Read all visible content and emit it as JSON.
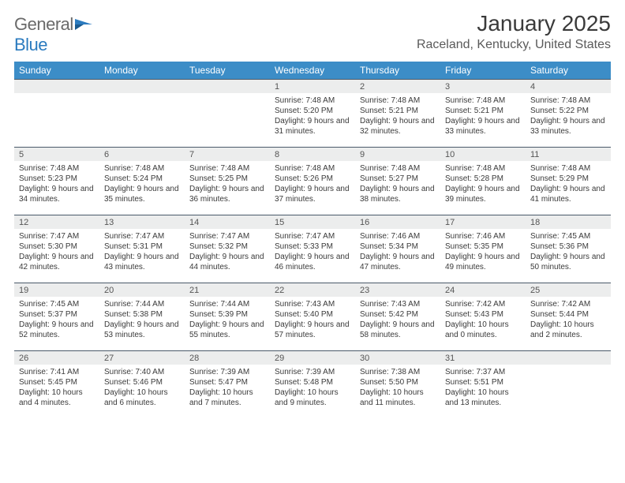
{
  "logo": {
    "general": "General",
    "blue": "Blue"
  },
  "title": "January 2025",
  "subtitle": "Raceland, Kentucky, United States",
  "colors": {
    "header_bg": "#3c8dc7",
    "header_text": "#ffffff",
    "strip_bg": "#eceded",
    "strip_border": "#4a5a6a",
    "body_text": "#3a3a3a",
    "logo_blue": "#2b7bbf"
  },
  "weekdays": [
    "Sunday",
    "Monday",
    "Tuesday",
    "Wednesday",
    "Thursday",
    "Friday",
    "Saturday"
  ],
  "weeks": [
    [
      null,
      null,
      null,
      {
        "n": "1",
        "sunrise": "7:48 AM",
        "sunset": "5:20 PM",
        "dl": "9 hours and 31 minutes."
      },
      {
        "n": "2",
        "sunrise": "7:48 AM",
        "sunset": "5:21 PM",
        "dl": "9 hours and 32 minutes."
      },
      {
        "n": "3",
        "sunrise": "7:48 AM",
        "sunset": "5:21 PM",
        "dl": "9 hours and 33 minutes."
      },
      {
        "n": "4",
        "sunrise": "7:48 AM",
        "sunset": "5:22 PM",
        "dl": "9 hours and 33 minutes."
      }
    ],
    [
      {
        "n": "5",
        "sunrise": "7:48 AM",
        "sunset": "5:23 PM",
        "dl": "9 hours and 34 minutes."
      },
      {
        "n": "6",
        "sunrise": "7:48 AM",
        "sunset": "5:24 PM",
        "dl": "9 hours and 35 minutes."
      },
      {
        "n": "7",
        "sunrise": "7:48 AM",
        "sunset": "5:25 PM",
        "dl": "9 hours and 36 minutes."
      },
      {
        "n": "8",
        "sunrise": "7:48 AM",
        "sunset": "5:26 PM",
        "dl": "9 hours and 37 minutes."
      },
      {
        "n": "9",
        "sunrise": "7:48 AM",
        "sunset": "5:27 PM",
        "dl": "9 hours and 38 minutes."
      },
      {
        "n": "10",
        "sunrise": "7:48 AM",
        "sunset": "5:28 PM",
        "dl": "9 hours and 39 minutes."
      },
      {
        "n": "11",
        "sunrise": "7:48 AM",
        "sunset": "5:29 PM",
        "dl": "9 hours and 41 minutes."
      }
    ],
    [
      {
        "n": "12",
        "sunrise": "7:47 AM",
        "sunset": "5:30 PM",
        "dl": "9 hours and 42 minutes."
      },
      {
        "n": "13",
        "sunrise": "7:47 AM",
        "sunset": "5:31 PM",
        "dl": "9 hours and 43 minutes."
      },
      {
        "n": "14",
        "sunrise": "7:47 AM",
        "sunset": "5:32 PM",
        "dl": "9 hours and 44 minutes."
      },
      {
        "n": "15",
        "sunrise": "7:47 AM",
        "sunset": "5:33 PM",
        "dl": "9 hours and 46 minutes."
      },
      {
        "n": "16",
        "sunrise": "7:46 AM",
        "sunset": "5:34 PM",
        "dl": "9 hours and 47 minutes."
      },
      {
        "n": "17",
        "sunrise": "7:46 AM",
        "sunset": "5:35 PM",
        "dl": "9 hours and 49 minutes."
      },
      {
        "n": "18",
        "sunrise": "7:45 AM",
        "sunset": "5:36 PM",
        "dl": "9 hours and 50 minutes."
      }
    ],
    [
      {
        "n": "19",
        "sunrise": "7:45 AM",
        "sunset": "5:37 PM",
        "dl": "9 hours and 52 minutes."
      },
      {
        "n": "20",
        "sunrise": "7:44 AM",
        "sunset": "5:38 PM",
        "dl": "9 hours and 53 minutes."
      },
      {
        "n": "21",
        "sunrise": "7:44 AM",
        "sunset": "5:39 PM",
        "dl": "9 hours and 55 minutes."
      },
      {
        "n": "22",
        "sunrise": "7:43 AM",
        "sunset": "5:40 PM",
        "dl": "9 hours and 57 minutes."
      },
      {
        "n": "23",
        "sunrise": "7:43 AM",
        "sunset": "5:42 PM",
        "dl": "9 hours and 58 minutes."
      },
      {
        "n": "24",
        "sunrise": "7:42 AM",
        "sunset": "5:43 PM",
        "dl": "10 hours and 0 minutes."
      },
      {
        "n": "25",
        "sunrise": "7:42 AM",
        "sunset": "5:44 PM",
        "dl": "10 hours and 2 minutes."
      }
    ],
    [
      {
        "n": "26",
        "sunrise": "7:41 AM",
        "sunset": "5:45 PM",
        "dl": "10 hours and 4 minutes."
      },
      {
        "n": "27",
        "sunrise": "7:40 AM",
        "sunset": "5:46 PM",
        "dl": "10 hours and 6 minutes."
      },
      {
        "n": "28",
        "sunrise": "7:39 AM",
        "sunset": "5:47 PM",
        "dl": "10 hours and 7 minutes."
      },
      {
        "n": "29",
        "sunrise": "7:39 AM",
        "sunset": "5:48 PM",
        "dl": "10 hours and 9 minutes."
      },
      {
        "n": "30",
        "sunrise": "7:38 AM",
        "sunset": "5:50 PM",
        "dl": "10 hours and 11 minutes."
      },
      {
        "n": "31",
        "sunrise": "7:37 AM",
        "sunset": "5:51 PM",
        "dl": "10 hours and 13 minutes."
      },
      null
    ]
  ]
}
